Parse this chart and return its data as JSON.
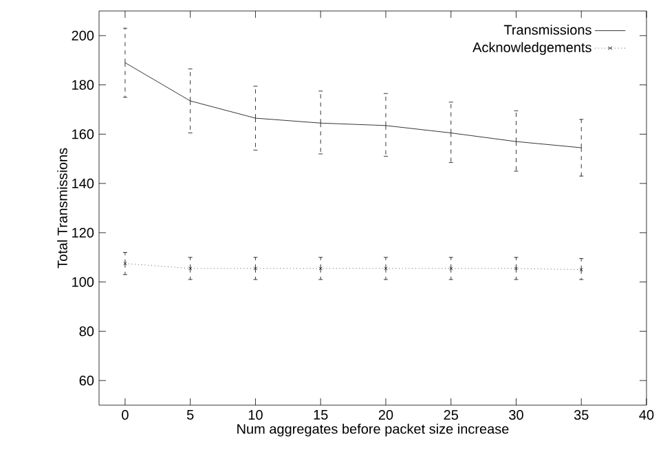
{
  "chart_data": {
    "type": "line",
    "xlabel": "Num aggregates before packet size increase",
    "ylabel": "Total Transmissions",
    "x": [
      0,
      5,
      10,
      15,
      20,
      25,
      30,
      35
    ],
    "xlim": [
      -2,
      40
    ],
    "xticks": [
      0,
      5,
      10,
      15,
      20,
      25,
      30,
      35,
      40
    ],
    "ylim": [
      50,
      210
    ],
    "yticks": [
      60,
      80,
      100,
      120,
      140,
      160,
      180,
      200
    ],
    "grid": false,
    "legend": "top right",
    "series": [
      {
        "name": "Transmissions",
        "color": "#000000",
        "marker": "none",
        "line_style": "solid",
        "values": [
          189,
          173.5,
          166.5,
          164.5,
          163.5,
          160.5,
          157,
          154.5
        ],
        "errors": [
          [
            175,
            203
          ],
          [
            160.5,
            186.5
          ],
          [
            153.5,
            179.5
          ],
          [
            152,
            177.5
          ],
          [
            151,
            176.5
          ],
          [
            148.5,
            173
          ],
          [
            145,
            169.5
          ],
          [
            143,
            166
          ]
        ]
      },
      {
        "name": "Acknowledgements",
        "color": "#000000",
        "marker": "cross",
        "line_style": "dotted",
        "values": [
          107.5,
          105.5,
          105.5,
          105.5,
          105.5,
          105.5,
          105.5,
          105
        ],
        "errors": [
          [
            103,
            112
          ],
          [
            101,
            110
          ],
          [
            101,
            110
          ],
          [
            101,
            110
          ],
          [
            101,
            110
          ],
          [
            101,
            110
          ],
          [
            101,
            110
          ],
          [
            101,
            109.5
          ]
        ]
      }
    ]
  }
}
